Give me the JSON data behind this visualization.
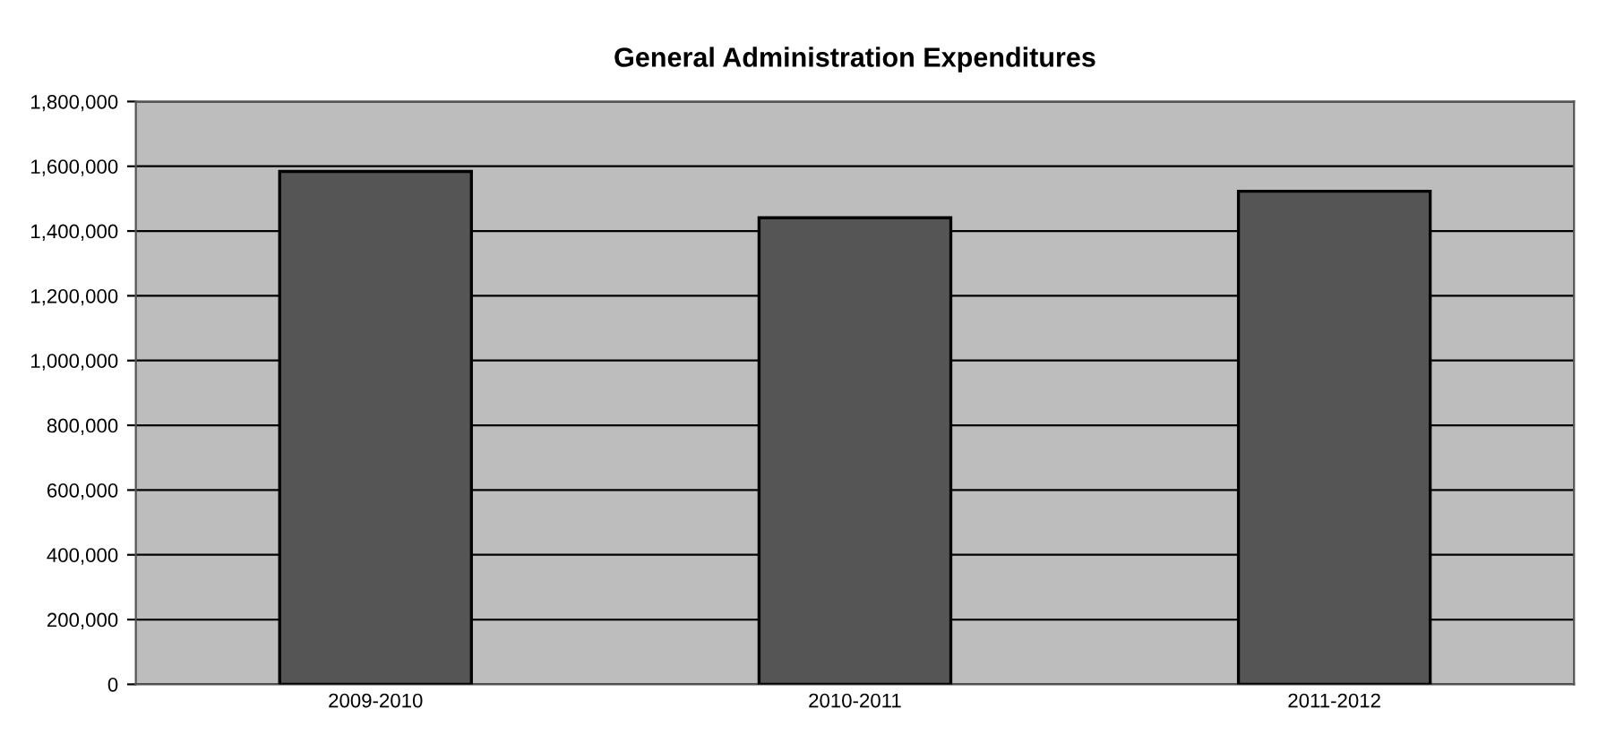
{
  "chart_data": {
    "type": "bar",
    "title": "General Administration Expenditures",
    "categories": [
      "2009-2010",
      "2010-2011",
      "2011-2012"
    ],
    "values": [
      1584000,
      1441000,
      1523000
    ],
    "color": "#555555",
    "ylim": [
      0,
      1800000
    ],
    "yticks": [
      {
        "value": 0,
        "label": "0"
      },
      {
        "value": 200000,
        "label": "200,000"
      },
      {
        "value": 400000,
        "label": "400,000"
      },
      {
        "value": 600000,
        "label": "600,000"
      },
      {
        "value": 800000,
        "label": "800,000"
      },
      {
        "value": 1000000,
        "label": "1,000,000"
      },
      {
        "value": 1200000,
        "label": "1,200,000"
      },
      {
        "value": 1400000,
        "label": "1,400,000"
      },
      {
        "value": 1600000,
        "label": "1,600,000"
      },
      {
        "value": 1800000,
        "label": "1,800,000"
      }
    ],
    "grid": "y"
  }
}
